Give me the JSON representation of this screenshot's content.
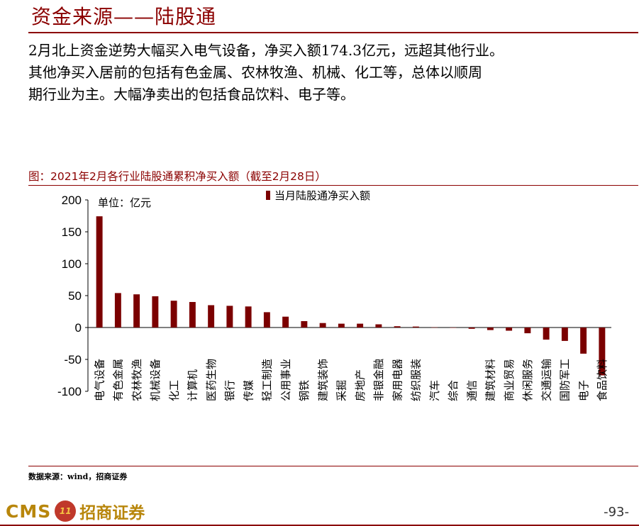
{
  "page": {
    "title": "资金来源——陆股通",
    "paragraph_lines": [
      "2月北上资金逆势大幅买入电气设备，净买入额174.3亿元，远超其他行业。",
      "其他净买入居前的包括有色金属、农林牧渔、机械、化工等，总体以顺周",
      "期行业为主。大幅净卖出的包括食品饮料、电子等。"
    ],
    "figure_caption": "图：2021年2月各行业陆股通累积净买入额（截至2月28日）",
    "source": "数据来源：wind，招商证券",
    "logo_cms": "CMS",
    "logo_mark": "11",
    "logo_name": "招商证券",
    "page_number": "-93-"
  },
  "colors": {
    "accent": "#8b0000",
    "bar": "#7b0000",
    "logo_gold": "#b8860b"
  },
  "chart_data": {
    "type": "bar",
    "unit_label": "单位：亿元",
    "legend": "当月陆股通净买入额",
    "legend_position": "top-center",
    "ylim": [
      -100,
      200
    ],
    "yticks": [
      200,
      150,
      100,
      50,
      0,
      -50,
      -100
    ],
    "grid": false,
    "categories": [
      "电气设备",
      "有色金属",
      "农林牧渔",
      "机械设备",
      "化工",
      "计算机",
      "医药生物",
      "银行",
      "传媒",
      "轻工制造",
      "公用事业",
      "钢铁",
      "建筑装饰",
      "采掘",
      "房地产",
      "非银金融",
      "家用电器",
      "纺织服装",
      "汽车",
      "综合",
      "通信",
      "建筑材料",
      "商业贸易",
      "休闲服务",
      "交通运输",
      "国防军工",
      "电子",
      "食品饮料"
    ],
    "values": [
      174.3,
      54,
      52,
      49,
      42,
      40,
      35,
      34,
      33,
      24,
      17,
      10,
      7,
      6,
      6,
      5,
      2,
      1.5,
      0.3,
      -0.5,
      -2,
      -4,
      -5,
      -9,
      -19,
      -21,
      -41,
      -75
    ]
  }
}
